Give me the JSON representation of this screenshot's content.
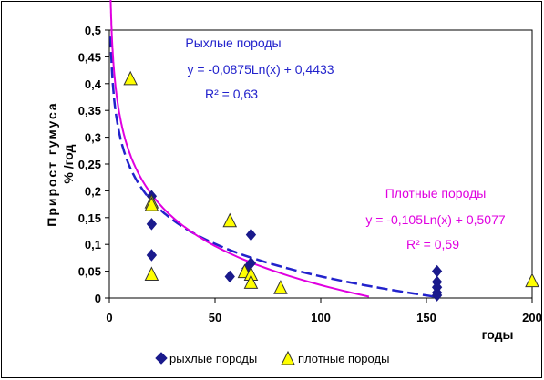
{
  "chart_data": {
    "type": "scatter",
    "title": "",
    "xlabel": "годы",
    "ylabel_line1": "Прирост гумуса",
    "ylabel_line2": "% /год",
    "xlim": [
      0,
      200
    ],
    "ylim": [
      0,
      0.5
    ],
    "x_ticks": [
      "0",
      "50",
      "100",
      "150",
      "200"
    ],
    "y_ticks": [
      "0",
      "0,05",
      "0,1",
      "0,15",
      "0,2",
      "0,25",
      "0,3",
      "0,35",
      "0,4",
      "0,45",
      "0,5"
    ],
    "grid": false,
    "legend_position": "bottom",
    "series": [
      {
        "name": "рыхлые породы",
        "marker": "diamond",
        "color": "#1a1a8c",
        "points": [
          [
            20,
            0.19
          ],
          [
            20,
            0.138
          ],
          [
            20,
            0.08
          ],
          [
            57,
            0.04
          ],
          [
            65,
            0.055
          ],
          [
            67,
            0.118
          ],
          [
            67,
            0.065
          ],
          [
            67,
            0.04
          ],
          [
            155,
            0.05
          ],
          [
            155,
            0.03
          ],
          [
            155,
            0.02
          ],
          [
            155,
            0.01
          ],
          [
            155,
            0.005
          ]
        ]
      },
      {
        "name": "плотные породы",
        "marker": "triangle",
        "color": "#ffff00",
        "points": [
          [
            10,
            0.41
          ],
          [
            20,
            0.18
          ],
          [
            20,
            0.175
          ],
          [
            20,
            0.045
          ],
          [
            57,
            0.145
          ],
          [
            64,
            0.05
          ],
          [
            67,
            0.045
          ],
          [
            67,
            0.03
          ],
          [
            81,
            0.02
          ],
          [
            200,
            0.033
          ]
        ]
      }
    ],
    "trendlines": [
      {
        "series": "рыхлые породы",
        "style": "dashed",
        "color": "#2222cc",
        "a": -0.0875,
        "b": 0.4433,
        "x_range": [
          0.6,
          160
        ],
        "label_title": "Рыхлые породы",
        "label_equation": "y = -0,0875Ln(x) + 0,4433",
        "label_r2": "R² = 0,63"
      },
      {
        "series": "плотные породы",
        "style": "solid",
        "color": "#e000e0",
        "a": -0.105,
        "b": 0.5077,
        "x_range": [
          0.6,
          127
        ],
        "label_title": "Плотные породы",
        "label_equation": "y = -0,105Ln(x) + 0,5077",
        "label_r2": "R² = 0,59"
      }
    ]
  }
}
